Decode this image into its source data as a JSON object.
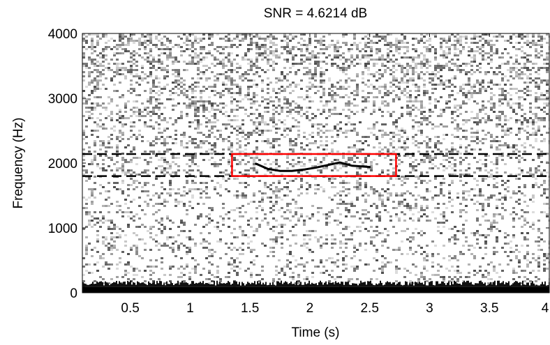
{
  "chart_data": {
    "type": "heatmap",
    "title": "SNR = 4.6214 dB",
    "xlabel": "Time (s)",
    "ylabel": "Frequency (Hz)",
    "xlim": [
      0.1,
      4
    ],
    "ylim": [
      0,
      4000
    ],
    "xticks": [
      0.5,
      1,
      1.5,
      2,
      2.5,
      3,
      3.5,
      4
    ],
    "xtick_labels": [
      "0.5",
      "1",
      "1.5",
      "2",
      "2.5",
      "3",
      "3.5",
      "4"
    ],
    "yticks": [
      0,
      1000,
      2000,
      3000,
      4000
    ],
    "ytick_labels": [
      "0",
      "1000",
      "2000",
      "3000",
      "4000"
    ],
    "colormap": "inverted-gray",
    "grid": false,
    "annotations": {
      "band_lines": {
        "style": "dashed",
        "color": "#000000",
        "y": [
          1800,
          2140
        ]
      },
      "detection_box": {
        "color": "#ff0000",
        "x": [
          1.35,
          2.72
        ],
        "y": [
          1800,
          2140
        ]
      }
    },
    "call_contour": {
      "t": [
        1.55,
        1.65,
        1.75,
        1.85,
        1.95,
        2.05,
        2.15,
        2.25,
        2.35,
        2.5
      ],
      "f": [
        1990,
        1910,
        1880,
        1880,
        1900,
        1930,
        1970,
        2010,
        1960,
        1940
      ]
    }
  }
}
